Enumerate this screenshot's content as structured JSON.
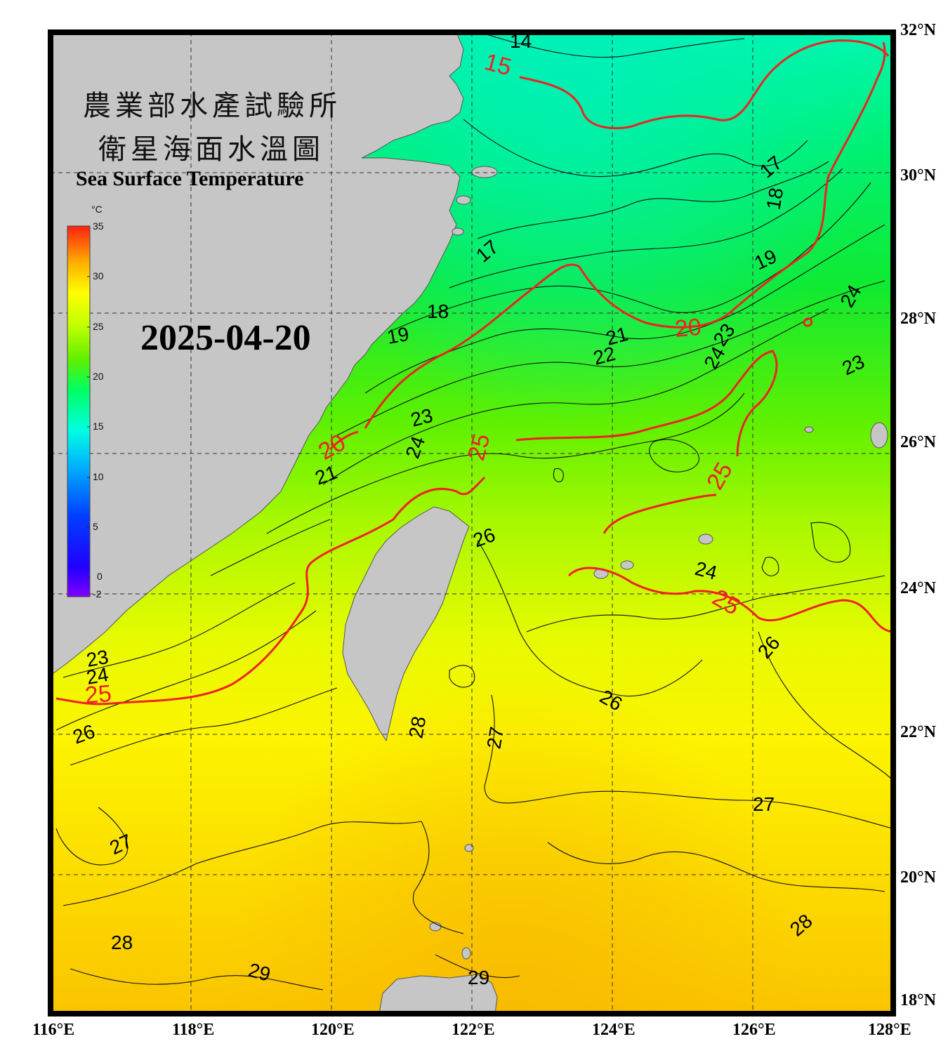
{
  "title": {
    "line1": "農業部水產試驗所",
    "line2": "衛星海面水溫圖",
    "english": "Sea Surface Temperature"
  },
  "date": "2025-04-20",
  "colorbar": {
    "unit": "°C",
    "ticks": [
      "35",
      "30",
      "25",
      "20",
      "15",
      "10",
      "5",
      "0",
      "-2"
    ],
    "min": -2,
    "max": 35,
    "colors": [
      "#8000ff",
      "#0000ff",
      "#0090ff",
      "#00ffff",
      "#00ff80",
      "#40f000",
      "#a0ff00",
      "#ffff00",
      "#ffc000",
      "#ff8000",
      "#ff2000"
    ]
  },
  "axes": {
    "x_labels": [
      "116°E",
      "118°E",
      "120°E",
      "122°E",
      "124°E",
      "126°E",
      "128°E"
    ],
    "y_labels": [
      "32°N",
      "30°N",
      "28°N",
      "26°N",
      "24°N",
      "22°N",
      "20°N",
      "18°N"
    ],
    "lon_range": [
      116,
      128
    ],
    "lat_range": [
      18,
      32
    ]
  },
  "contour_labels_black": [
    "14",
    "17",
    "17",
    "18",
    "18",
    "19",
    "19",
    "21",
    "21",
    "22",
    "23",
    "23",
    "23",
    "24",
    "24",
    "24",
    "24",
    "24",
    "23",
    "26",
    "26",
    "26",
    "26",
    "27",
    "27",
    "27",
    "28",
    "28",
    "28",
    "29",
    "29"
  ],
  "contour_labels_red": [
    "15",
    "20",
    "20",
    "25",
    "25",
    "25",
    "25"
  ],
  "colors": {
    "land": "#c6c6c6",
    "frame": "#000000",
    "red_isotherm": "#ee2222",
    "contour": "#111111"
  }
}
